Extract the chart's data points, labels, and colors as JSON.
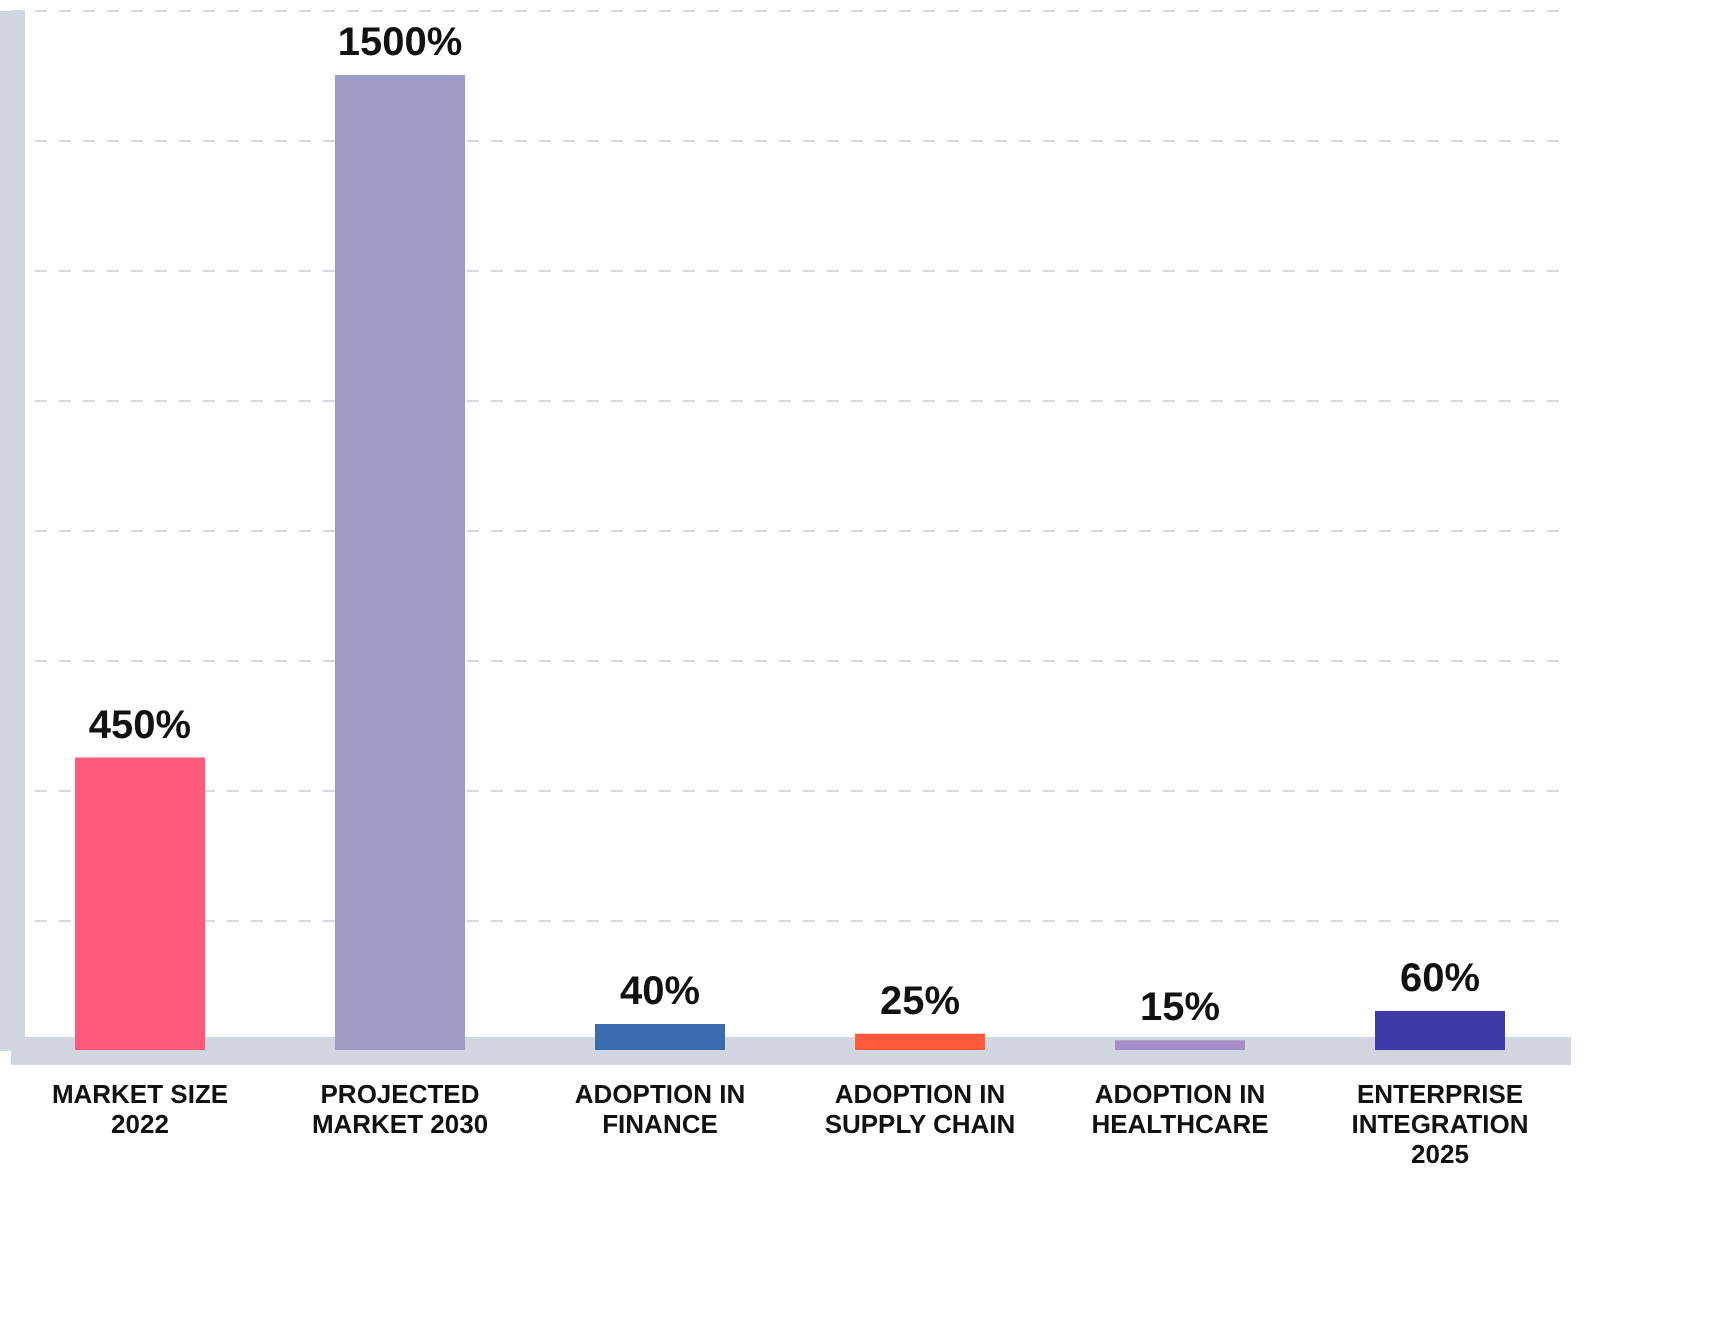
{
  "chart_data": {
    "type": "bar",
    "categories": [
      "MARKET SIZE 2022",
      "PROJECTED MARKET 2030",
      "ADOPTION IN FINANCE",
      "ADOPTION IN SUPPLY CHAIN",
      "ADOPTION IN HEALTHCARE",
      "ENTERPRISE INTEGRATION 2025"
    ],
    "values": [
      450,
      1500,
      40,
      25,
      15,
      60
    ],
    "value_labels": [
      "450%",
      "1500%",
      "40%",
      "25%",
      "15%",
      "60%"
    ],
    "colors": [
      "#ff5a7c",
      "#9d9bc6",
      "#3b6cb0",
      "#ff5a3c",
      "#a68fc8",
      "#3d3aa8"
    ],
    "grid": "y",
    "tick_labels": "x"
  }
}
